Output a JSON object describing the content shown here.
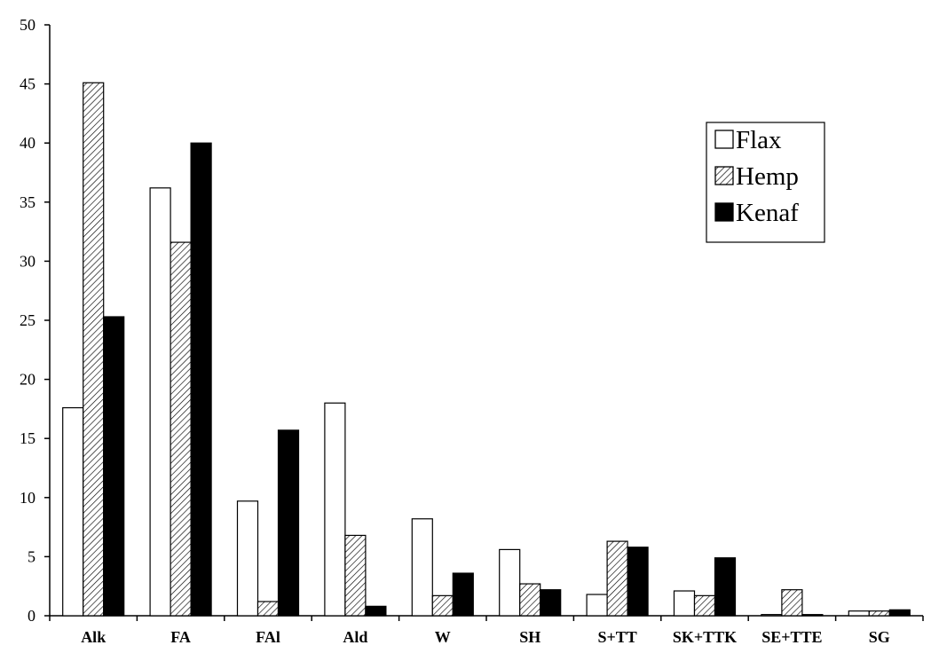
{
  "chart_data": {
    "type": "bar",
    "title": "",
    "xlabel": "",
    "ylabel": "",
    "ylim": [
      0,
      50
    ],
    "yticks": [
      0,
      5,
      10,
      15,
      20,
      25,
      30,
      35,
      40,
      45,
      50
    ],
    "grid": false,
    "legend_position": "top-right",
    "categories": [
      "Alk",
      "FA",
      "FAl",
      "Ald",
      "W",
      "SH",
      "S+TT",
      "SK+TTK",
      "SE+TTE",
      "SG"
    ],
    "series": [
      {
        "name": "Flax",
        "fill": "white",
        "values": [
          17.6,
          36.2,
          9.7,
          18.0,
          8.2,
          5.6,
          1.8,
          2.1,
          0.1,
          0.4
        ]
      },
      {
        "name": "Hemp",
        "fill": "hatch",
        "values": [
          45.1,
          31.6,
          1.2,
          6.8,
          1.7,
          2.7,
          6.3,
          1.7,
          2.2,
          0.4
        ]
      },
      {
        "name": "Kenaf",
        "fill": "black",
        "values": [
          25.3,
          40.0,
          15.7,
          0.8,
          3.6,
          2.2,
          5.8,
          4.9,
          0.1,
          0.5
        ]
      }
    ],
    "colors": {
      "outline": "#000000",
      "white": "#ffffff",
      "black": "#000000"
    }
  }
}
